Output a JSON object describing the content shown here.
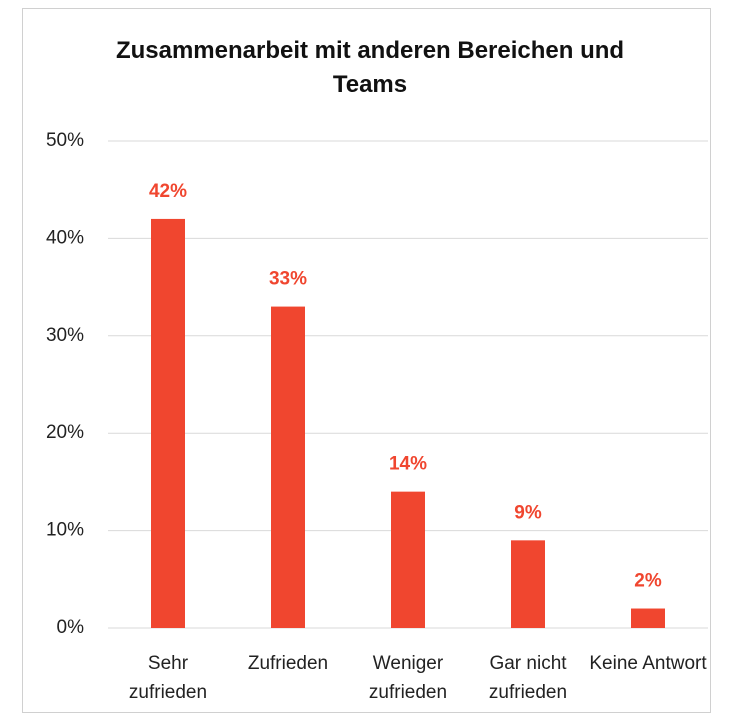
{
  "chart_data": {
    "type": "bar",
    "title": "Zusammenarbeit mit anderen Bereichen und Teams",
    "categories": [
      "Sehr zufrieden",
      "Zufrieden",
      "Weniger zufrieden",
      "Gar nicht zufrieden",
      "Keine Antwort"
    ],
    "values": [
      42,
      33,
      14,
      9,
      2
    ],
    "value_labels": [
      "42%",
      "33%",
      "14%",
      "9%",
      "2%"
    ],
    "color": "#f0462f",
    "ylim": [
      0,
      50
    ],
    "yticks": [
      {
        "value": 0,
        "label": "0%"
      },
      {
        "value": 10,
        "label": "10%"
      },
      {
        "value": 20,
        "label": "20%"
      },
      {
        "value": 30,
        "label": "30%"
      },
      {
        "value": 40,
        "label": "40%"
      },
      {
        "value": 50,
        "label": "50%"
      }
    ],
    "grid": true
  }
}
